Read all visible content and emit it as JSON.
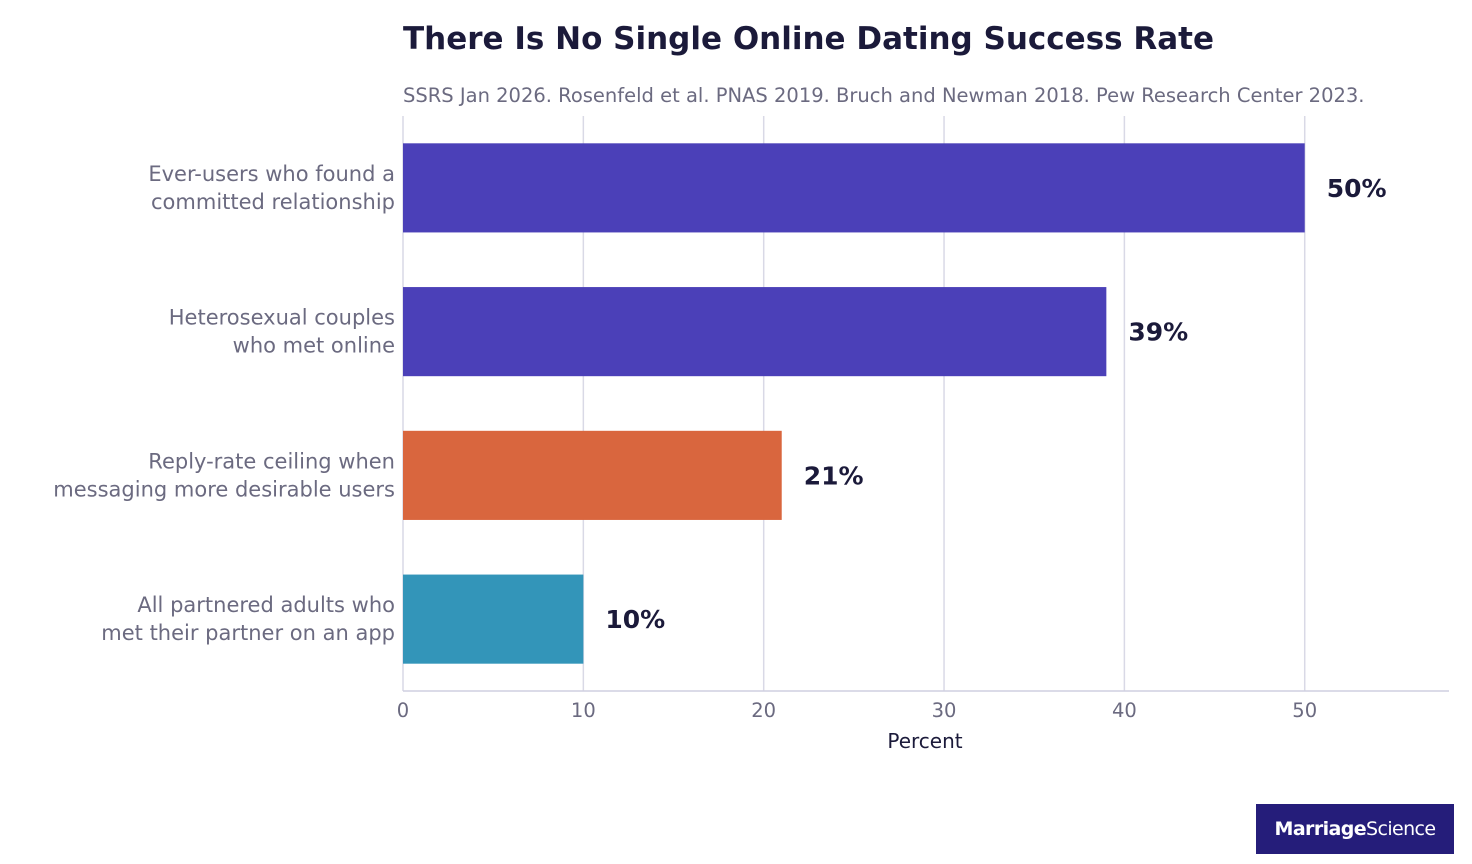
{
  "chart_data": {
    "type": "bar",
    "orientation": "horizontal",
    "title": "There Is No Single Online Dating Success Rate",
    "subtitle": "SSRS Jan 2026. Rosenfeld et al. PNAS 2019. Bruch and Newman 2018. Pew Research Center 2023.",
    "xlabel": "Percent",
    "ylabel": "",
    "xlim": [
      0,
      58
    ],
    "xticks": [
      0,
      10,
      20,
      30,
      40,
      50
    ],
    "grid": true,
    "categories": [
      [
        "Ever-users who found a",
        "committed relationship"
      ],
      [
        "Heterosexual couples",
        "who met online"
      ],
      [
        "Reply-rate ceiling when",
        "messaging more desirable users"
      ],
      [
        "All partnered adults who",
        "met their partner on an app"
      ]
    ],
    "values": [
      50,
      39,
      21,
      10
    ],
    "value_labels": [
      "50%",
      "39%",
      "21%",
      "10%"
    ],
    "bar_colors": [
      "#4b40b8",
      "#4b40b8",
      "#d9663e",
      "#3395b9"
    ]
  },
  "colors": {
    "title": "#1b1a3a",
    "muted_text": "#6b6a80",
    "gridline": "#d9d9e6",
    "axis": "#cfcfe0",
    "logo_bg": "#251d7a"
  },
  "logo": {
    "part1": "Marriage",
    "part2": "Science"
  }
}
